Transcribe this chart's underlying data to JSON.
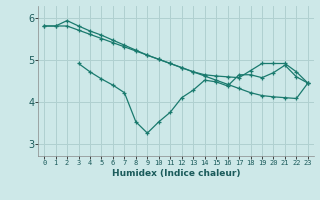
{
  "background_color": "#cde8e8",
  "grid_color": "#b0d0d0",
  "line_color": "#1a7a6e",
  "xlabel": "Humidex (Indice chaleur)",
  "ylim": [
    2.7,
    6.3
  ],
  "xlim": [
    -0.5,
    23.5
  ],
  "yticks": [
    3,
    4,
    5,
    6
  ],
  "xticks": [
    0,
    1,
    2,
    3,
    4,
    5,
    6,
    7,
    8,
    9,
    10,
    11,
    12,
    13,
    14,
    15,
    16,
    17,
    18,
    19,
    20,
    21,
    22,
    23
  ],
  "line1_x": [
    0,
    1,
    2,
    3,
    4,
    5,
    6,
    7,
    8,
    9,
    10,
    11,
    12,
    13,
    14,
    15,
    16,
    17,
    18,
    19,
    20,
    21,
    22,
    23
  ],
  "line1_y": [
    5.82,
    5.82,
    5.95,
    5.82,
    5.7,
    5.6,
    5.48,
    5.36,
    5.24,
    5.12,
    5.02,
    4.92,
    4.82,
    4.72,
    4.65,
    4.62,
    4.6,
    4.58,
    4.75,
    4.92,
    4.92,
    4.92,
    4.72,
    4.45
  ],
  "line2_x": [
    0,
    1,
    2,
    3,
    4,
    5,
    6,
    7,
    8,
    9,
    10,
    11,
    12,
    13,
    14,
    15,
    16,
    17,
    18,
    19,
    20,
    21,
    22,
    23
  ],
  "line2_y": [
    5.82,
    5.82,
    5.82,
    5.72,
    5.62,
    5.52,
    5.42,
    5.32,
    5.22,
    5.12,
    5.02,
    4.92,
    4.82,
    4.72,
    4.62,
    4.52,
    4.42,
    4.32,
    4.22,
    4.15,
    4.12,
    4.1,
    4.08,
    4.45
  ],
  "line3_x": [
    3,
    4,
    5,
    6,
    7,
    8,
    9,
    10,
    11,
    12,
    13,
    14,
    15,
    16,
    17,
    18,
    19,
    20,
    21,
    22,
    23
  ],
  "line3_y": [
    4.92,
    4.72,
    4.55,
    4.4,
    4.22,
    3.52,
    3.25,
    3.52,
    3.75,
    4.1,
    4.28,
    4.52,
    4.48,
    4.38,
    4.65,
    4.65,
    4.58,
    4.7,
    4.88,
    4.6,
    4.45
  ]
}
